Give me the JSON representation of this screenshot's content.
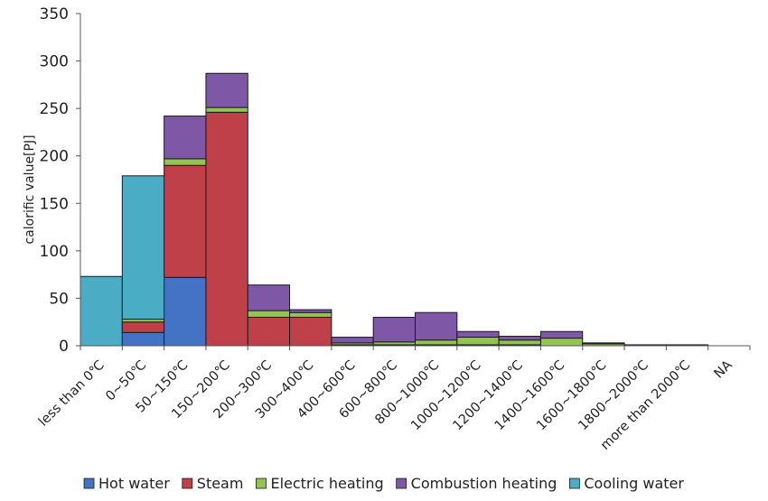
{
  "chart_data": {
    "type": "bar",
    "stacked": true,
    "title": "",
    "xlabel": "",
    "ylabel": "calorific value[PJ]",
    "ylim": [
      0,
      350
    ],
    "yticks": [
      0,
      50,
      100,
      150,
      200,
      250,
      300,
      350
    ],
    "grid": false,
    "legend_position": "bottom",
    "categories": [
      "less than 0℃",
      "0~50℃",
      "50~150℃",
      "150~200℃",
      "200~300℃",
      "300~400℃",
      "400~600℃",
      "600~800℃",
      "800~1000℃",
      "1000~1200℃",
      "1200~1400℃",
      "1400~1600℃",
      "1600~1800℃",
      "1800~2000℃",
      "more than 2000℃",
      "NA"
    ],
    "series": [
      {
        "name": "Hot water",
        "color": "#4472C4",
        "values": [
          0,
          14,
          72,
          0,
          0,
          0,
          0,
          0,
          0,
          0,
          0,
          0,
          0,
          0,
          0,
          0
        ]
      },
      {
        "name": "Steam",
        "color": "#C0404A",
        "values": [
          0,
          11,
          118,
          246,
          30,
          30,
          1,
          1,
          1,
          1,
          1,
          0,
          0,
          0,
          0,
          0
        ]
      },
      {
        "name": "Electric heating",
        "color": "#92C353",
        "values": [
          0,
          3,
          7,
          5,
          7,
          5,
          2,
          3,
          5,
          8,
          5,
          8,
          2,
          1,
          1,
          0
        ]
      },
      {
        "name": "Combustion heating",
        "color": "#7E57A7",
        "values": [
          0,
          0,
          45,
          36,
          27,
          3,
          6,
          26,
          29,
          6,
          4,
          7,
          1,
          0,
          0,
          0
        ]
      },
      {
        "name": "Cooling water",
        "color": "#4BACC6",
        "values": [
          73,
          151,
          0,
          0,
          0,
          0,
          0,
          0,
          0,
          0,
          0,
          0,
          0,
          0,
          0,
          0
        ]
      }
    ]
  }
}
